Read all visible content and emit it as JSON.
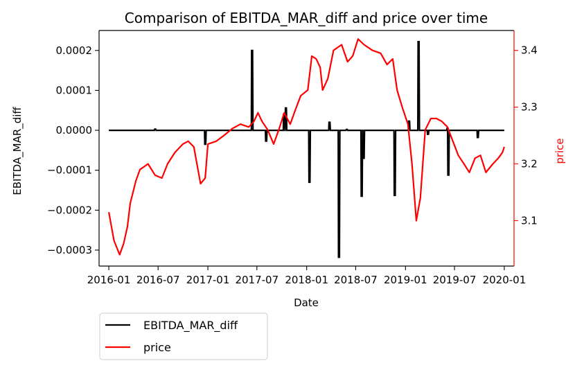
{
  "chart_data": {
    "type": "line",
    "title": "Comparison of EBITDA_MAR_diff and price over time",
    "xlabel": "Date",
    "ylabel_left": "EBITDA_MAR_diff",
    "ylabel_right": "price",
    "x_ticks": [
      "2016-01",
      "2016-07",
      "2017-01",
      "2017-07",
      "2018-01",
      "2018-07",
      "2019-01",
      "2019-07",
      "2020-01"
    ],
    "y_left_ticks": [
      "0.0002",
      "0.0001",
      "0.0000",
      "−0.0001",
      "−0.0002",
      "−0.0003"
    ],
    "y_right_ticks": [
      "3.1",
      "3.2",
      "3.3",
      "3.4"
    ],
    "ylim_left": [
      -0.00034,
      0.00025
    ],
    "ylim_right": [
      3.02,
      3.435
    ],
    "xlim": [
      "2015-11-26",
      "2020-02-06"
    ],
    "legend_location": "below-left",
    "colors": {
      "left_series": "#000000",
      "right_series": "#ff0000",
      "right_axis": "#ff0000"
    },
    "series": [
      {
        "name": "EBITDA_MAR_diff",
        "axis": "left",
        "color": "#000000",
        "base_value": 0.0,
        "x_range": [
          "2016-01-01",
          "2020-01-01"
        ],
        "events": [
          {
            "date": "2016-06-20",
            "value": 3e-06
          },
          {
            "date": "2016-12-22",
            "value": -3.5e-05
          },
          {
            "date": "2017-06-13",
            "value": 0.0002
          },
          {
            "date": "2017-08-04",
            "value": -2.7e-05
          },
          {
            "date": "2017-10-09",
            "value": 4e-05
          },
          {
            "date": "2017-10-16",
            "value": 5.6e-05
          },
          {
            "date": "2018-01-11",
            "value": -0.00013
          },
          {
            "date": "2018-03-26",
            "value": 2e-05
          },
          {
            "date": "2018-04-30",
            "value": -0.000318
          },
          {
            "date": "2018-05-29",
            "value": 2e-06
          },
          {
            "date": "2018-07-23",
            "value": -0.000165
          },
          {
            "date": "2018-07-30",
            "value": -7e-05
          },
          {
            "date": "2018-11-22",
            "value": -0.000163
          },
          {
            "date": "2019-01-14",
            "value": 2.3e-05
          },
          {
            "date": "2019-02-18",
            "value": 0.000222
          },
          {
            "date": "2019-03-25",
            "value": -1e-05
          },
          {
            "date": "2019-06-05",
            "value": 5e-06
          },
          {
            "date": "2019-06-08",
            "value": -0.000112
          },
          {
            "date": "2019-09-25",
            "value": -1.8e-05
          }
        ]
      },
      {
        "name": "price",
        "axis": "right",
        "color": "#ff0000",
        "points": [
          [
            "2016-01-01",
            3.115
          ],
          [
            "2016-01-20",
            3.065
          ],
          [
            "2016-02-10",
            3.04
          ],
          [
            "2016-02-25",
            3.06
          ],
          [
            "2016-03-10",
            3.09
          ],
          [
            "2016-03-20",
            3.13
          ],
          [
            "2016-04-10",
            3.17
          ],
          [
            "2016-04-25",
            3.19
          ],
          [
            "2016-05-10",
            3.195
          ],
          [
            "2016-05-25",
            3.2
          ],
          [
            "2016-06-20",
            3.18
          ],
          [
            "2016-07-15",
            3.175
          ],
          [
            "2016-08-05",
            3.2
          ],
          [
            "2016-09-01",
            3.22
          ],
          [
            "2016-10-01",
            3.235
          ],
          [
            "2016-10-20",
            3.24
          ],
          [
            "2016-11-10",
            3.23
          ],
          [
            "2016-12-05",
            3.165
          ],
          [
            "2016-12-22",
            3.175
          ],
          [
            "2017-01-01",
            3.235
          ],
          [
            "2017-02-01",
            3.24
          ],
          [
            "2017-03-01",
            3.25
          ],
          [
            "2017-04-01",
            3.262
          ],
          [
            "2017-05-01",
            3.27
          ],
          [
            "2017-06-01",
            3.265
          ],
          [
            "2017-06-20",
            3.275
          ],
          [
            "2017-07-05",
            3.29
          ],
          [
            "2017-07-20",
            3.275
          ],
          [
            "2017-08-10",
            3.26
          ],
          [
            "2017-09-01",
            3.235
          ],
          [
            "2017-09-20",
            3.26
          ],
          [
            "2017-10-10",
            3.29
          ],
          [
            "2017-11-01",
            3.27
          ],
          [
            "2017-11-20",
            3.295
          ],
          [
            "2017-12-10",
            3.32
          ],
          [
            "2018-01-05",
            3.33
          ],
          [
            "2018-01-20",
            3.39
          ],
          [
            "2018-02-05",
            3.385
          ],
          [
            "2018-02-20",
            3.37
          ],
          [
            "2018-03-01",
            3.33
          ],
          [
            "2018-03-20",
            3.35
          ],
          [
            "2018-04-10",
            3.4
          ],
          [
            "2018-05-10",
            3.41
          ],
          [
            "2018-06-01",
            3.38
          ],
          [
            "2018-06-20",
            3.39
          ],
          [
            "2018-07-10",
            3.42
          ],
          [
            "2018-08-01",
            3.41
          ],
          [
            "2018-09-01",
            3.4
          ],
          [
            "2018-10-01",
            3.395
          ],
          [
            "2018-10-25",
            3.375
          ],
          [
            "2018-11-15",
            3.385
          ],
          [
            "2018-12-01",
            3.33
          ],
          [
            "2018-12-20",
            3.3
          ],
          [
            "2019-01-10",
            3.27
          ],
          [
            "2019-01-25",
            3.2
          ],
          [
            "2019-02-10",
            3.1
          ],
          [
            "2019-02-25",
            3.14
          ],
          [
            "2019-03-15",
            3.26
          ],
          [
            "2019-04-05",
            3.28
          ],
          [
            "2019-04-25",
            3.28
          ],
          [
            "2019-05-15",
            3.275
          ],
          [
            "2019-06-05",
            3.265
          ],
          [
            "2019-06-25",
            3.24
          ],
          [
            "2019-07-15",
            3.215
          ],
          [
            "2019-08-05",
            3.2
          ],
          [
            "2019-08-25",
            3.185
          ],
          [
            "2019-09-15",
            3.21
          ],
          [
            "2019-10-05",
            3.215
          ],
          [
            "2019-10-25",
            3.185
          ],
          [
            "2019-11-20",
            3.2
          ],
          [
            "2019-12-10",
            3.21
          ],
          [
            "2019-12-25",
            3.22
          ],
          [
            "2020-01-01",
            3.23
          ]
        ]
      }
    ]
  },
  "legend": {
    "items": [
      {
        "label": "EBITDA_MAR_diff",
        "color": "#000000"
      },
      {
        "label": "price",
        "color": "#ff0000"
      }
    ]
  }
}
